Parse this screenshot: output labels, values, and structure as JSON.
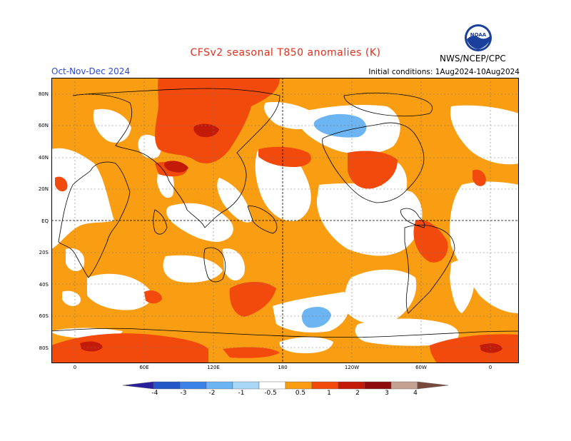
{
  "header": {
    "title": "CFSv2 seasonal T850 anomalies (K)",
    "season": "Oct-Nov-Dec 2024",
    "initial_conditions": "Initial conditions:  1Aug2024-10Aug2024",
    "agency": "NWS/NCEP/CPC",
    "logo_text": "NOAA"
  },
  "map": {
    "lat_labels": [
      "80N",
      "60N",
      "40N",
      "20N",
      "EQ",
      "20S",
      "40S",
      "60S",
      "80S"
    ],
    "lon_labels": [
      "0",
      "60E",
      "120E",
      "180",
      "120W",
      "60W",
      "0"
    ]
  },
  "colorbar": {
    "labels": [
      "-4",
      "-3",
      "-2",
      "-1",
      "-0.5",
      "0.5",
      "1",
      "2",
      "3",
      "4"
    ],
    "colors": [
      "#2c1f9e",
      "#2257c8",
      "#3a82e8",
      "#6cb4f2",
      "#a9d7f7",
      "#ffffff",
      "#f99d12",
      "#f24a0d",
      "#c41a0a",
      "#8f0a0a",
      "#c5a191",
      "#7a4a3c"
    ]
  }
}
